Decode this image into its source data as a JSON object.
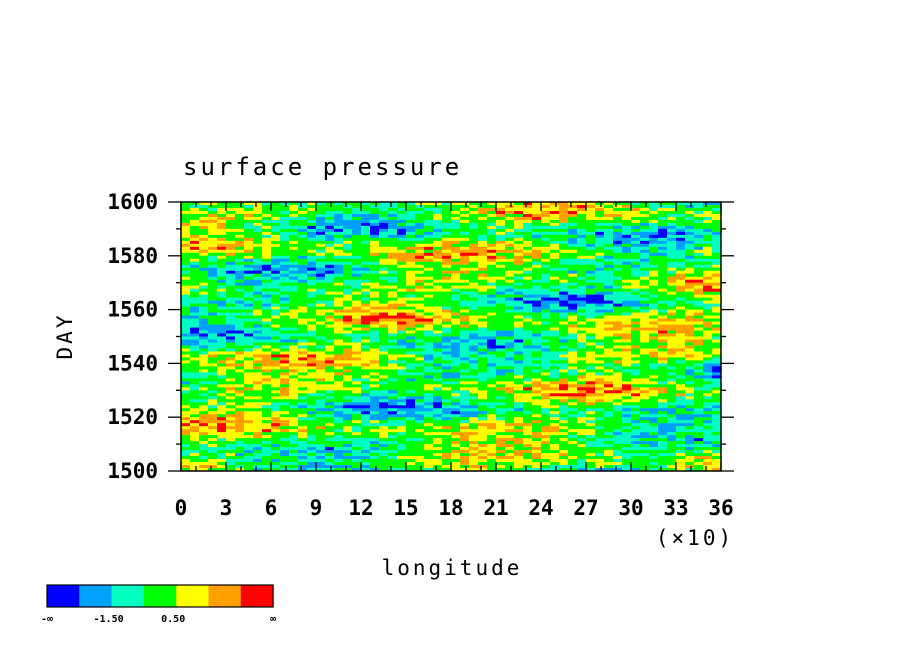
{
  "chart_data": {
    "type": "heatmap",
    "title": "surface pressure",
    "xlabel": "longitude",
    "ylabel": "DAY",
    "x_multiplier_label": "(×10)",
    "xlim": [
      0,
      36
    ],
    "ylim": [
      1500,
      1600
    ],
    "x_ticks": [
      "0",
      "3",
      "6",
      "9",
      "12",
      "15",
      "18",
      "21",
      "24",
      "27",
      "30",
      "33",
      "36"
    ],
    "y_ticks": [
      "1500",
      "1520",
      "1540",
      "1560",
      "1580",
      "1600"
    ],
    "colorbar": {
      "colors": [
        "#0000ff",
        "#00a0ff",
        "#00ffc0",
        "#00ff00",
        "#ffff00",
        "#ffa000",
        "#ff0000"
      ],
      "labels": [
        "-∞",
        "-1.50",
        "0.50",
        "∞"
      ]
    }
  }
}
